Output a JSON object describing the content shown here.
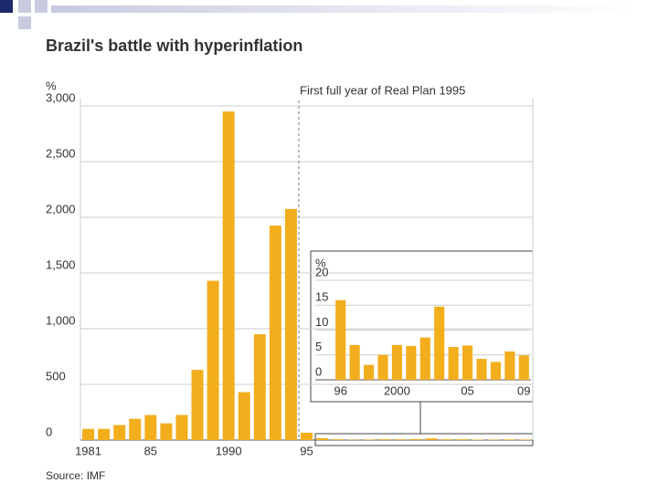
{
  "chart_data": [
    {
      "type": "bar",
      "title": "Brazil's battle with hyperinflation",
      "ylabel": "%",
      "annotation": "First full year of Real Plan 1995",
      "source": "Source: IMF",
      "categories": [
        "1981",
        null,
        null,
        null,
        "85",
        null,
        null,
        null,
        null,
        "1990",
        null,
        null,
        null,
        null,
        "95",
        null,
        null,
        null,
        null,
        null,
        null,
        null,
        null,
        null,
        null,
        null,
        null,
        null,
        null
      ],
      "values": [
        100,
        100,
        135,
        190,
        225,
        150,
        225,
        630,
        1430,
        2950,
        430,
        950,
        1925,
        2075,
        66,
        16,
        7,
        3,
        5,
        7,
        6.8,
        8.5,
        14.7,
        6.6,
        6.9,
        4.2,
        3.6,
        5.7,
        4.9
      ],
      "color": "#f2ae1c",
      "ylim": [
        0,
        3000
      ],
      "yticks": [
        0,
        500,
        {
          "value": 1000,
          "label": "1,000"
        },
        {
          "value": 1500,
          "label": "1,500"
        },
        {
          "value": 2000,
          "label": "2,000"
        },
        {
          "value": 2500,
          "label": "2,500"
        },
        {
          "value": 3000,
          "label": "3,000"
        }
      ],
      "grid": true
    },
    {
      "type": "bar",
      "ylabel": "%",
      "categories": [
        "96",
        null,
        null,
        null,
        "2000",
        null,
        null,
        null,
        null,
        "05",
        null,
        null,
        null,
        "09"
      ],
      "values": [
        16,
        7,
        3,
        5,
        7,
        6.8,
        8.5,
        14.7,
        6.6,
        6.9,
        4.2,
        3.6,
        5.7,
        4.9
      ],
      "color": "#f2ae1c",
      "ylim": [
        0,
        20
      ],
      "yticks": [
        0,
        5,
        10,
        15,
        20
      ],
      "grid": true
    }
  ]
}
